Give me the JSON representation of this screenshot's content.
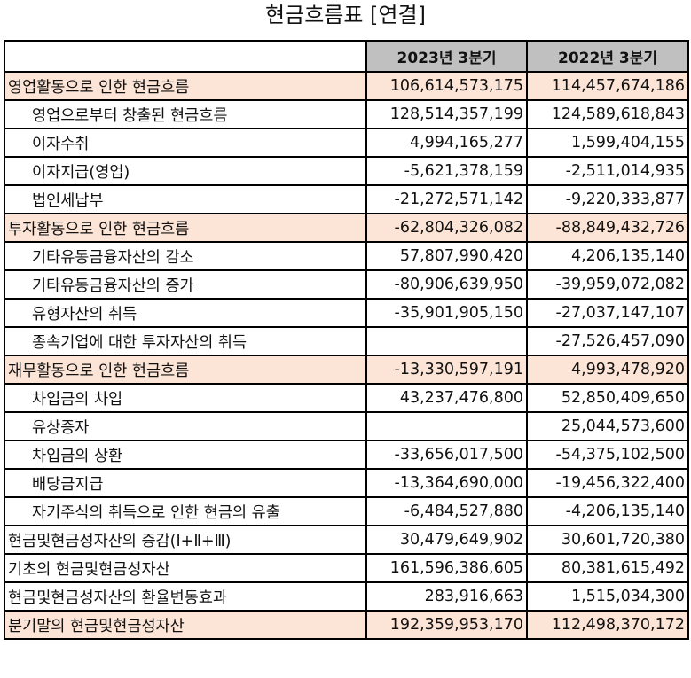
{
  "title": "현금흐름표 [연결]",
  "table": {
    "headers": [
      "",
      "2023년 3분기",
      "2022년 3분기"
    ],
    "rows": [
      {
        "label": "영업활동으로 인한 현금흐름",
        "v2023": "106,614,573,175",
        "v2022": "114,457,674,186",
        "highlight": true,
        "indent": false
      },
      {
        "label": "영업으로부터 창출된 현금흐름",
        "v2023": "128,514,357,199",
        "v2022": "124,589,618,843",
        "highlight": false,
        "indent": true
      },
      {
        "label": "이자수취",
        "v2023": "4,994,165,277",
        "v2022": "1,599,404,155",
        "highlight": false,
        "indent": true
      },
      {
        "label": "이자지급(영업)",
        "v2023": "-5,621,378,159",
        "v2022": "-2,511,014,935",
        "highlight": false,
        "indent": true
      },
      {
        "label": "법인세납부",
        "v2023": "-21,272,571,142",
        "v2022": "-9,220,333,877",
        "highlight": false,
        "indent": true
      },
      {
        "label": "투자활동으로 인한 현금흐름",
        "v2023": "-62,804,326,082",
        "v2022": "-88,849,432,726",
        "highlight": true,
        "indent": false
      },
      {
        "label": "기타유동금융자산의 감소",
        "v2023": "57,807,990,420",
        "v2022": "4,206,135,140",
        "highlight": false,
        "indent": true
      },
      {
        "label": "기타유동금융자산의 증가",
        "v2023": "-80,906,639,950",
        "v2022": "-39,959,072,082",
        "highlight": false,
        "indent": true
      },
      {
        "label": "유형자산의 취득",
        "v2023": "-35,901,905,150",
        "v2022": "-27,037,147,107",
        "highlight": false,
        "indent": true
      },
      {
        "label": "종속기업에 대한 투자자산의 취득",
        "v2023": "",
        "v2022": "-27,526,457,090",
        "highlight": false,
        "indent": true
      },
      {
        "label": "재무활동으로 인한 현금흐름",
        "v2023": "-13,330,597,191",
        "v2022": "4,993,478,920",
        "highlight": true,
        "indent": false
      },
      {
        "label": "차입금의 차입",
        "v2023": "43,237,476,800",
        "v2022": "52,850,409,650",
        "highlight": false,
        "indent": true
      },
      {
        "label": "유상증자",
        "v2023": "",
        "v2022": "25,044,573,600",
        "highlight": false,
        "indent": true
      },
      {
        "label": "차입금의 상환",
        "v2023": "-33,656,017,500",
        "v2022": "-54,375,102,500",
        "highlight": false,
        "indent": true
      },
      {
        "label": "배당금지급",
        "v2023": "-13,364,690,000",
        "v2022": "-19,456,322,400",
        "highlight": false,
        "indent": true
      },
      {
        "label": "자기주식의 취득으로 인한 현금의 유출",
        "v2023": "-6,484,527,880",
        "v2022": "-4,206,135,140",
        "highlight": false,
        "indent": true
      },
      {
        "label": "현금및현금성자산의 증감(Ⅰ+Ⅱ+Ⅲ)",
        "v2023": "30,479,649,902",
        "v2022": "30,601,720,380",
        "highlight": false,
        "indent": false
      },
      {
        "label": "기초의 현금및현금성자산",
        "v2023": "161,596,386,605",
        "v2022": "80,381,615,492",
        "highlight": false,
        "indent": false
      },
      {
        "label": "현금및현금성자산의 환율변동효과",
        "v2023": "283,916,663",
        "v2022": "1,515,034,300",
        "highlight": false,
        "indent": false
      },
      {
        "label": "분기말의 현금및현금성자산",
        "v2023": "192,359,953,170",
        "v2022": "112,498,370,172",
        "highlight": true,
        "indent": false
      }
    ]
  },
  "colors": {
    "highlight": "#fce4d6",
    "header": "#c0c0c0",
    "border": "#000000"
  }
}
